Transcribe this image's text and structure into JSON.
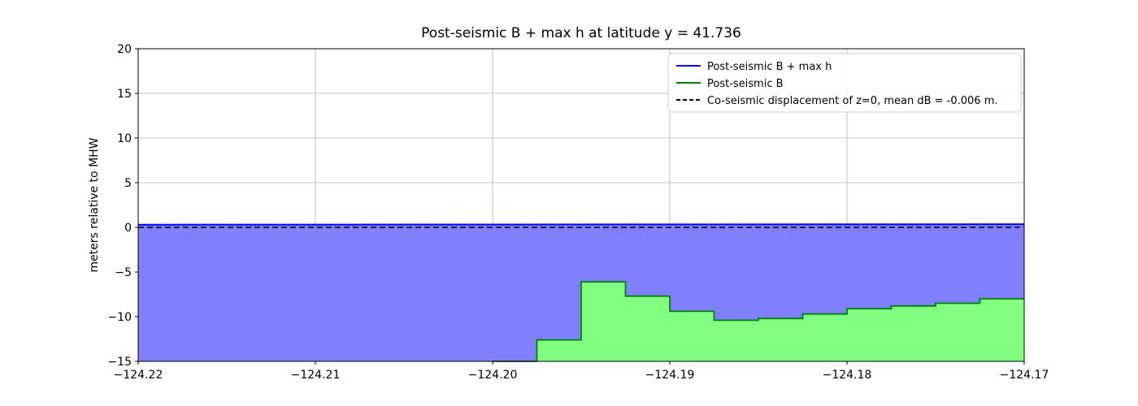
{
  "chart_data": {
    "type": "area",
    "title": "Post-seismic B + max h at latitude y = 41.736",
    "xlabel": "",
    "ylabel": "meters relative to MHW",
    "xlim": [
      -124.22,
      -124.17
    ],
    "ylim": [
      -15,
      20
    ],
    "xticks": [
      -124.22,
      -124.21,
      -124.2,
      -124.19,
      -124.18,
      -124.17
    ],
    "xtick_labels": [
      "−124.22",
      "−124.21",
      "−124.20",
      "−124.19",
      "−124.18",
      "−124.17"
    ],
    "yticks": [
      20,
      15,
      10,
      5,
      0,
      -5,
      -10,
      -15
    ],
    "ytick_labels": [
      "20",
      "15",
      "10",
      "5",
      "0",
      "−5",
      "−10",
      "−15"
    ],
    "grid": true,
    "grid_color": "#b0b0b0",
    "legend_position": "upper right",
    "series": [
      {
        "name": "Post-seismic B + max h",
        "type": "line-with-fill",
        "color": "#0000ff",
        "fill_color": "#8080ff",
        "x": [
          -124.22,
          -124.17
        ],
        "y": [
          0.3,
          0.35
        ]
      },
      {
        "name": "Post-seismic B",
        "type": "step-with-fill",
        "color": "#008000",
        "fill_color": "#80ff80",
        "steps": [
          {
            "x0": -124.2,
            "x1": -124.1975,
            "y": -15.0
          },
          {
            "x0": -124.1975,
            "x1": -124.195,
            "y": -12.6
          },
          {
            "x0": -124.195,
            "x1": -124.1925,
            "y": -6.1
          },
          {
            "x0": -124.1925,
            "x1": -124.19,
            "y": -7.7
          },
          {
            "x0": -124.19,
            "x1": -124.1875,
            "y": -9.4
          },
          {
            "x0": -124.1875,
            "x1": -124.185,
            "y": -10.4
          },
          {
            "x0": -124.185,
            "x1": -124.1825,
            "y": -10.2
          },
          {
            "x0": -124.1825,
            "x1": -124.18,
            "y": -9.7
          },
          {
            "x0": -124.18,
            "x1": -124.1775,
            "y": -9.1
          },
          {
            "x0": -124.1775,
            "x1": -124.175,
            "y": -8.8
          },
          {
            "x0": -124.175,
            "x1": -124.1725,
            "y": -8.5
          },
          {
            "x0": -124.1725,
            "x1": -124.17,
            "y": -8.0
          }
        ]
      },
      {
        "name": "Co-seismic displacement of z=0, mean dB = -0.006 m.",
        "type": "hline",
        "style": "dashed",
        "color": "#000000",
        "y": 0.0,
        "mean_dB": -0.006
      }
    ]
  }
}
